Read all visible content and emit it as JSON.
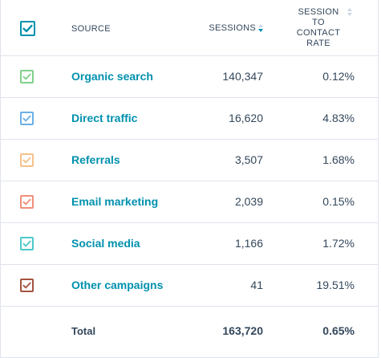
{
  "header": {
    "source_label": "SOURCE",
    "sessions_label": "SESSIONS",
    "rate_label_lines": [
      "SESSION",
      "TO",
      "CONTACT",
      "RATE"
    ],
    "checkbox_color": "#0091ae"
  },
  "rows": [
    {
      "source": "Organic search",
      "sessions": "140,347",
      "rate": "0.12%",
      "checkbox_color": "#7fd18b"
    },
    {
      "source": "Direct traffic",
      "sessions": "16,620",
      "rate": "4.83%",
      "checkbox_color": "#6ab0e8"
    },
    {
      "source": "Referrals",
      "sessions": "3,507",
      "rate": "1.68%",
      "checkbox_color": "#f5c18a"
    },
    {
      "source": "Email marketing",
      "sessions": "2,039",
      "rate": "0.15%",
      "checkbox_color": "#f0907a"
    },
    {
      "source": "Social media",
      "sessions": "1,166",
      "rate": "1.72%",
      "checkbox_color": "#4fc9c9"
    },
    {
      "source": "Other campaigns",
      "sessions": "41",
      "rate": "19.51%",
      "checkbox_color": "#a5523f"
    }
  ],
  "total": {
    "label": "Total",
    "sessions": "163,720",
    "rate": "0.65%"
  },
  "colors": {
    "link": "#0091ae",
    "text": "#33475b",
    "border": "#dfe3eb"
  }
}
